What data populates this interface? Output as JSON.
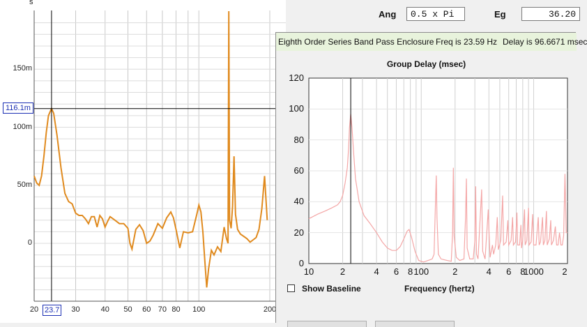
{
  "background_plot": {
    "axis_unit": "s",
    "y_ticks": [
      {
        "label": "150m",
        "value": 0.15
      },
      {
        "label": "100m",
        "value": 0.1
      },
      {
        "label": "50m",
        "value": 0.05
      },
      {
        "label": "0",
        "value": 0.0
      }
    ],
    "x_ticks": [
      {
        "label": "20",
        "value": 20
      },
      {
        "label": "30",
        "value": 30
      },
      {
        "label": "40",
        "value": 40
      },
      {
        "label": "50",
        "value": 50
      },
      {
        "label": "60",
        "value": 60
      },
      {
        "label": "70",
        "value": 70
      },
      {
        "label": "80",
        "value": 80
      },
      {
        "label": "100",
        "value": 100
      },
      {
        "label": "200",
        "value": 200
      }
    ],
    "cursor_y_label": "116.1m",
    "cursor_x_label": "23.7",
    "cursor": {
      "x": 23.7,
      "y": 0.1161
    },
    "curve_color": "#e08a1e",
    "curve": [
      [
        20,
        0.058
      ],
      [
        20.5,
        0.052
      ],
      [
        21,
        0.05
      ],
      [
        21.5,
        0.058
      ],
      [
        22,
        0.075
      ],
      [
        22.5,
        0.095
      ],
      [
        23,
        0.11
      ],
      [
        23.7,
        0.1161
      ],
      [
        24.2,
        0.112
      ],
      [
        25,
        0.093
      ],
      [
        26,
        0.065
      ],
      [
        27,
        0.043
      ],
      [
        28,
        0.036
      ],
      [
        29,
        0.034
      ],
      [
        30,
        0.026
      ],
      [
        31,
        0.024
      ],
      [
        32,
        0.024
      ],
      [
        33,
        0.021
      ],
      [
        34,
        0.017
      ],
      [
        35,
        0.023
      ],
      [
        36,
        0.023
      ],
      [
        37,
        0.014
      ],
      [
        38,
        0.024
      ],
      [
        39,
        0.021
      ],
      [
        40,
        0.014
      ],
      [
        41,
        0.019
      ],
      [
        42,
        0.023
      ],
      [
        44,
        0.02
      ],
      [
        46,
        0.017
      ],
      [
        48,
        0.017
      ],
      [
        50,
        0.013
      ],
      [
        51,
        0.0
      ],
      [
        52,
        -0.005
      ],
      [
        54,
        0.012
      ],
      [
        56,
        0.016
      ],
      [
        58,
        0.011
      ],
      [
        60,
        0.0
      ],
      [
        62,
        0.002
      ],
      [
        64,
        0.007
      ],
      [
        67,
        0.017
      ],
      [
        70,
        0.013
      ],
      [
        73,
        0.022
      ],
      [
        76,
        0.027
      ],
      [
        78,
        0.022
      ],
      [
        80,
        0.012
      ],
      [
        83,
        -0.004
      ],
      [
        86,
        0.01
      ],
      [
        90,
        0.009
      ],
      [
        94,
        0.01
      ],
      [
        98,
        0.025
      ],
      [
        100,
        0.033
      ],
      [
        102,
        0.027
      ],
      [
        104,
        0.01
      ],
      [
        106,
        -0.015
      ],
      [
        108,
        -0.038
      ],
      [
        110,
        -0.022
      ],
      [
        113,
        -0.006
      ],
      [
        116,
        -0.01
      ],
      [
        120,
        -0.003
      ],
      [
        124,
        -0.007
      ],
      [
        128,
        0.014
      ],
      [
        131,
        0.004
      ],
      [
        133,
        0.0
      ],
      [
        134,
        0.2
      ],
      [
        135,
        0.02
      ],
      [
        137,
        0.013
      ],
      [
        139,
        0.032
      ],
      [
        141,
        0.075
      ],
      [
        143,
        0.025
      ],
      [
        146,
        0.012
      ],
      [
        150,
        0.008
      ],
      [
        155,
        0.006
      ],
      [
        160,
        0.004
      ],
      [
        165,
        0.001
      ],
      [
        170,
        0.003
      ],
      [
        175,
        0.005
      ],
      [
        180,
        0.012
      ],
      [
        185,
        0.03
      ],
      [
        190,
        0.058
      ],
      [
        195,
        0.02
      ]
    ]
  },
  "side_panel": {
    "ang_label": "Ang",
    "ang_value": "0.5 x Pi",
    "eg_label": "Eg",
    "eg_value": "36.20"
  },
  "gd_window": {
    "title_parts": {
      "name": "Eighth Order Series Band Pass Enclosure",
      "freq": "Freq is 23.59 Hz",
      "delay": "Delay is 96.6671 msec"
    },
    "show_baseline_label": "Show Baseline",
    "show_baseline_checked": false
  },
  "chart_data": {
    "type": "line",
    "title": "Group Delay (msec)",
    "xlabel": "Frequency (hertz)",
    "ylabel": "",
    "x_scale": "log",
    "xlim": [
      10,
      2000
    ],
    "ylim": [
      0,
      120
    ],
    "y_ticks": [
      0,
      20,
      40,
      60,
      80,
      100,
      120
    ],
    "x_ticks": [
      {
        "label": "10",
        "value": 10
      },
      {
        "label": "2",
        "value": 20
      },
      {
        "label": "4",
        "value": 40
      },
      {
        "label": "6",
        "value": 60
      },
      {
        "label": "8",
        "value": 80
      },
      {
        "label": "100",
        "value": 100
      },
      {
        "label": "2",
        "value": 200
      },
      {
        "label": "4",
        "value": 400
      },
      {
        "label": "6",
        "value": 600
      },
      {
        "label": "8",
        "value": 800
      },
      {
        "label": "1000",
        "value": 1000
      },
      {
        "label": "2",
        "value": 2000
      }
    ],
    "cursor_x": 23.59,
    "grid": true,
    "line_color": "#f4a6a6",
    "series": [
      {
        "values": [
          [
            10,
            29
          ],
          [
            12,
            32
          ],
          [
            14,
            34
          ],
          [
            16,
            36
          ],
          [
            18,
            38
          ],
          [
            19,
            40
          ],
          [
            20,
            44
          ],
          [
            21,
            52
          ],
          [
            22,
            62
          ],
          [
            22.6,
            75
          ],
          [
            23,
            88
          ],
          [
            23.59,
            96.7
          ],
          [
            24.2,
            88
          ],
          [
            25,
            72
          ],
          [
            26,
            55
          ],
          [
            28,
            40
          ],
          [
            31,
            31
          ],
          [
            35,
            26
          ],
          [
            40,
            20
          ],
          [
            45,
            14
          ],
          [
            50,
            10
          ],
          [
            55,
            8.5
          ],
          [
            60,
            8.5
          ],
          [
            65,
            11
          ],
          [
            70,
            16
          ],
          [
            75,
            21
          ],
          [
            78,
            22
          ],
          [
            82,
            17
          ],
          [
            88,
            8
          ],
          [
            95,
            2
          ],
          [
            105,
            1
          ],
          [
            115,
            2
          ],
          [
            125,
            3
          ],
          [
            130,
            6
          ],
          [
            134,
            40
          ],
          [
            136,
            57
          ],
          [
            138,
            30
          ],
          [
            142,
            6
          ],
          [
            150,
            3
          ],
          [
            170,
            2
          ],
          [
            185,
            1.5
          ],
          [
            190,
            20
          ],
          [
            193,
            62
          ],
          [
            196,
            18
          ],
          [
            205,
            4
          ],
          [
            220,
            2
          ],
          [
            240,
            3
          ],
          [
            248,
            30
          ],
          [
            252,
            55
          ],
          [
            256,
            10
          ],
          [
            270,
            3
          ],
          [
            290,
            3
          ],
          [
            300,
            15
          ],
          [
            305,
            50
          ],
          [
            310,
            6
          ],
          [
            320,
            3
          ],
          [
            345,
            48
          ],
          [
            352,
            8
          ],
          [
            370,
            3
          ],
          [
            395,
            35
          ],
          [
            400,
            22
          ],
          [
            410,
            4
          ],
          [
            430,
            12
          ],
          [
            440,
            6
          ],
          [
            460,
            12
          ],
          [
            475,
            30
          ],
          [
            485,
            9
          ],
          [
            510,
            15
          ],
          [
            530,
            44
          ],
          [
            540,
            12
          ],
          [
            570,
            14
          ],
          [
            590,
            28
          ],
          [
            600,
            12
          ],
          [
            630,
            15
          ],
          [
            650,
            30
          ],
          [
            660,
            12
          ],
          [
            690,
            14
          ],
          [
            710,
            33
          ],
          [
            720,
            12
          ],
          [
            750,
            12
          ],
          [
            770,
            25
          ],
          [
            780,
            10
          ],
          [
            800,
            15
          ],
          [
            830,
            35
          ],
          [
            840,
            12
          ],
          [
            870,
            15
          ],
          [
            900,
            36
          ],
          [
            910,
            12
          ],
          [
            950,
            14
          ],
          [
            980,
            32
          ],
          [
            1000,
            12
          ],
          [
            1050,
            12
          ],
          [
            1100,
            30
          ],
          [
            1120,
            12
          ],
          [
            1150,
            14
          ],
          [
            1200,
            30
          ],
          [
            1220,
            12
          ],
          [
            1260,
            15
          ],
          [
            1300,
            34
          ],
          [
            1320,
            12
          ],
          [
            1380,
            16
          ],
          [
            1420,
            28
          ],
          [
            1440,
            12
          ],
          [
            1500,
            15
          ],
          [
            1560,
            24
          ],
          [
            1600,
            12
          ],
          [
            1650,
            12
          ],
          [
            1700,
            20
          ],
          [
            1750,
            12
          ],
          [
            1800,
            12
          ],
          [
            1850,
            18
          ],
          [
            1900,
            58
          ],
          [
            1950,
            20
          ],
          [
            2000,
            20
          ]
        ]
      }
    ]
  }
}
